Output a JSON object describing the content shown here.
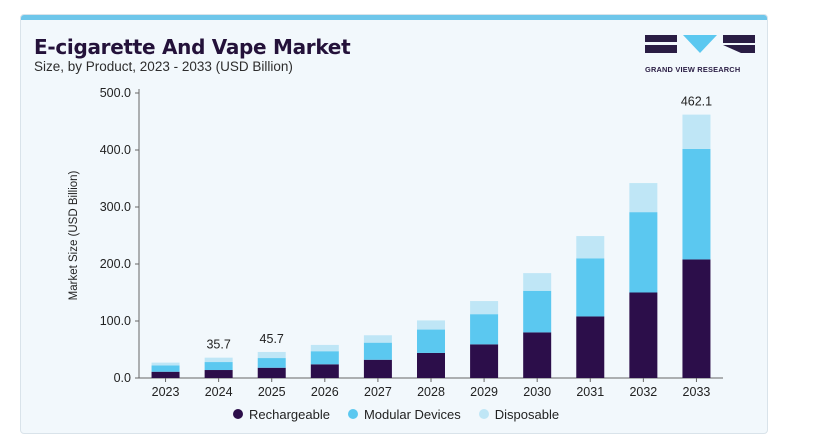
{
  "header": {
    "title": "E-cigarette And Vape Market",
    "subtitle": "Size, by Product, 2023 - 2033 (USD Billion)"
  },
  "brand": {
    "name": "GRAND VIEW RESEARCH",
    "color": "#2a1d44"
  },
  "colors": {
    "accent": "#6ec6ea",
    "rechargeable": "#2c0e4a",
    "modular": "#5bc8f0",
    "disposable": "#bfe6f6"
  },
  "chart_data": {
    "type": "bar",
    "stacked": true,
    "categories": [
      "2023",
      "2024",
      "2025",
      "2026",
      "2027",
      "2028",
      "2029",
      "2030",
      "2031",
      "2032",
      "2033"
    ],
    "series": [
      {
        "name": "Rechargeable",
        "values": [
          11,
          14,
          18,
          24,
          32,
          44,
          59,
          80,
          108,
          150,
          208
        ],
        "color": "#2c0e4a"
      },
      {
        "name": "Modular Devices",
        "values": [
          11,
          14,
          17,
          23,
          30,
          41,
          53,
          73,
          102,
          141,
          194
        ],
        "color": "#5bc8f0"
      },
      {
        "name": "Disposable",
        "values": [
          5,
          7.7,
          10.7,
          11,
          13,
          16,
          23,
          31,
          39,
          51,
          60.1
        ],
        "color": "#bfe6f6"
      }
    ],
    "data_labels": [
      {
        "category": "2024",
        "text": "35.7"
      },
      {
        "category": "2025",
        "text": "45.7"
      },
      {
        "category": "2033",
        "text": "462.1"
      }
    ],
    "yticks": [
      "0.0",
      "100.0",
      "200.0",
      "300.0",
      "400.0",
      "500.0"
    ],
    "ylim": [
      0,
      500
    ],
    "ylabel": "Market Size (USD Billion)",
    "xlabel": "",
    "grid": false,
    "legend_position": "bottom"
  }
}
